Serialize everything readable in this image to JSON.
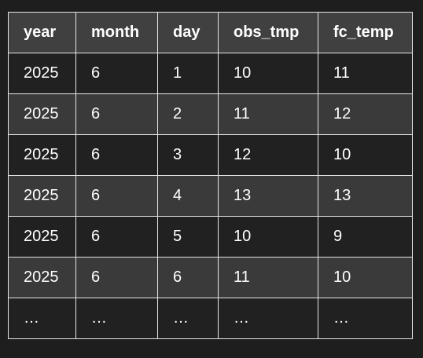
{
  "table": {
    "headers": [
      "year",
      "month",
      "day",
      "obs_tmp",
      "fc_temp"
    ],
    "rows": [
      [
        "2025",
        "6",
        "1",
        "10",
        "11"
      ],
      [
        "2025",
        "6",
        "2",
        "11",
        "12"
      ],
      [
        "2025",
        "6",
        "3",
        "12",
        "10"
      ],
      [
        "2025",
        "6",
        "4",
        "13",
        "13"
      ],
      [
        "2025",
        "6",
        "5",
        "10",
        "9"
      ],
      [
        "2025",
        "6",
        "6",
        "11",
        "10"
      ],
      [
        "…",
        "…",
        "…",
        "…",
        "…"
      ]
    ]
  },
  "colors": {
    "background": "#1e1e1e",
    "header_bg": "#404040",
    "row_dark": "#212121",
    "row_light": "#3a3a3a",
    "border": "#e6e6e6",
    "text": "#ffffff"
  }
}
